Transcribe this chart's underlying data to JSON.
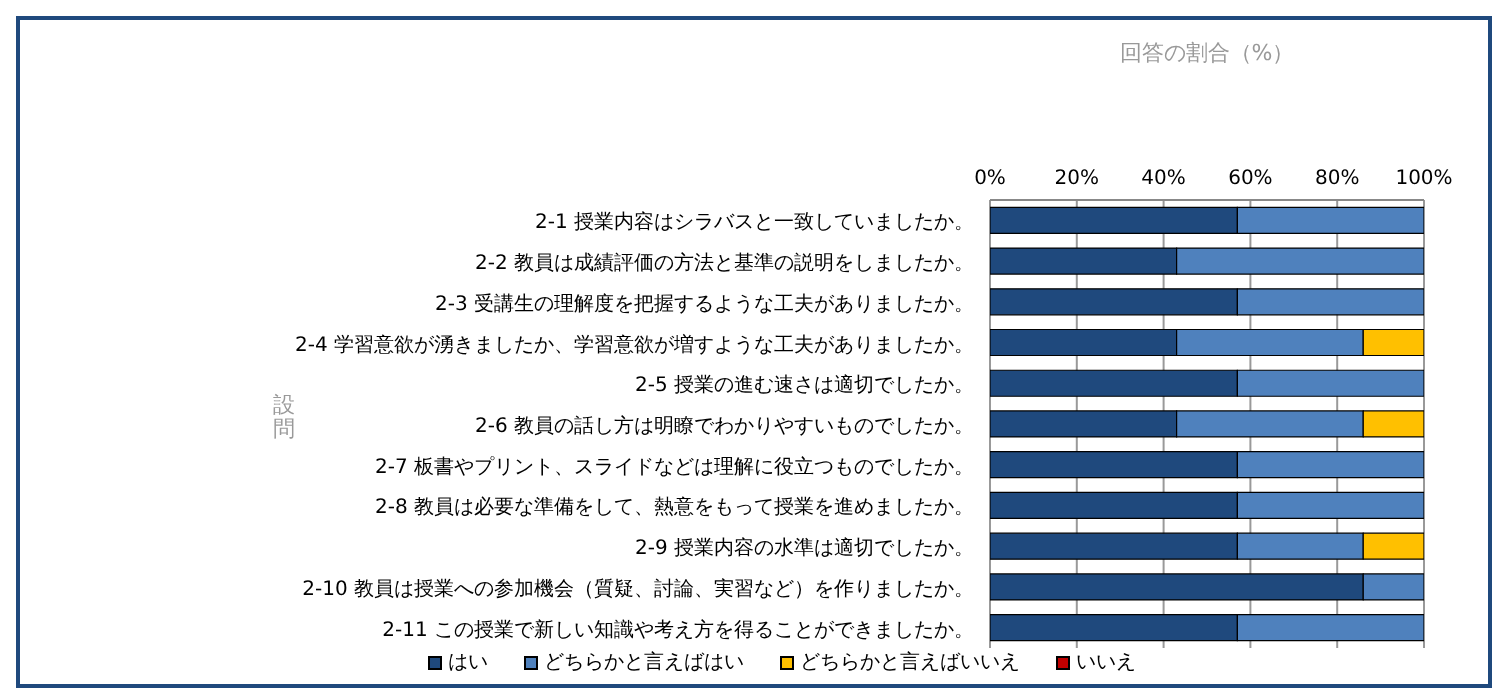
{
  "chart_data": {
    "type": "bar",
    "orientation": "horizontal",
    "stacked": true,
    "xlabel": "回答の割合（%）",
    "ylabel": "設問",
    "categories": [
      "2-1  授業内容はシラバスと一致していましたか。",
      "2-2  教員は成績評価の方法と基準の説明をしましたか。",
      "2-3  受講生の理解度を把握するような工夫がありましたか。",
      "2-4  学習意欲が湧きましたか、学習意欲が増すような工夫がありましたか。",
      "2-5  授業の進む速さは適切でしたか。",
      "2-6  教員の話し方は明瞭でわかりやすいものでしたか。",
      "2-7  板書やプリント、スライドなどは理解に役立つものでしたか。",
      "2-8  教員は必要な準備をして、熱意をもって授業を進めましたか。",
      "2-9  授業内容の水準は適切でしたか。",
      "2-10  教員は授業への参加機会（質疑、討論、実習など）を作りましたか。",
      "2-11  この授業で新しい知識や考え方を得ることができましたか。"
    ],
    "series": [
      {
        "name": "はい",
        "color": "#1f497d",
        "values": [
          57,
          43,
          57,
          43,
          57,
          43,
          57,
          57,
          57,
          86,
          57
        ]
      },
      {
        "name": "どちらかと言えばはい",
        "color": "#4f81bd",
        "values": [
          43,
          57,
          43,
          43,
          43,
          43,
          43,
          43,
          29,
          14,
          43
        ]
      },
      {
        "name": "どちらかと言えばいいえ",
        "color": "#ffc000",
        "values": [
          0,
          0,
          0,
          14,
          0,
          14,
          0,
          0,
          14,
          0,
          0
        ]
      },
      {
        "name": "いいえ",
        "color": "#c00000",
        "values": [
          0,
          0,
          0,
          0,
          0,
          0,
          0,
          0,
          0,
          0,
          0
        ]
      }
    ],
    "xlim": [
      0,
      100
    ],
    "xticks": [
      {
        "value": 0,
        "label": "0%"
      },
      {
        "value": 20,
        "label": "20%"
      },
      {
        "value": 40,
        "label": "40%"
      },
      {
        "value": 60,
        "label": "60%"
      },
      {
        "value": 80,
        "label": "80%"
      },
      {
        "value": 100,
        "label": "100%"
      }
    ],
    "grid": "x",
    "legend": "bottom"
  }
}
